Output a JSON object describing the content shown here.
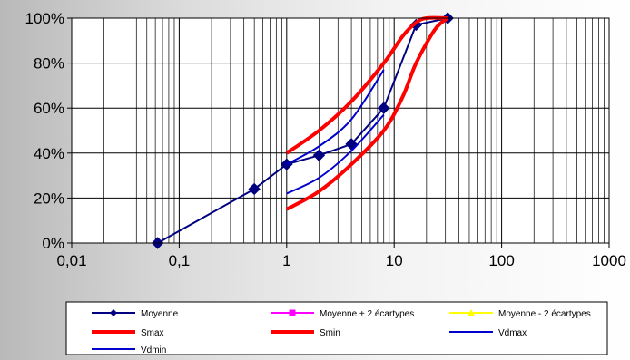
{
  "chart_data": {
    "type": "line",
    "x_scale": "log",
    "xlim": [
      0.01,
      1000
    ],
    "ylim": [
      0,
      100
    ],
    "x_ticks": [
      {
        "value": 0.01,
        "label": "0,01"
      },
      {
        "value": 0.1,
        "label": "0,1"
      },
      {
        "value": 1,
        "label": "1"
      },
      {
        "value": 10,
        "label": "10"
      },
      {
        "value": 100,
        "label": "100"
      },
      {
        "value": 1000,
        "label": "1000"
      }
    ],
    "y_ticks": [
      {
        "value": 0,
        "label": "0%"
      },
      {
        "value": 20,
        "label": "20%"
      },
      {
        "value": 40,
        "label": "40%"
      },
      {
        "value": 60,
        "label": "60%"
      },
      {
        "value": 80,
        "label": "80%"
      },
      {
        "value": 100,
        "label": "100%"
      }
    ],
    "grid": true,
    "legend_position": "bottom",
    "series": [
      {
        "name": "Moyenne",
        "color": "#000080",
        "marker": "diamond",
        "points": [
          [
            0.063,
            0
          ],
          [
            0.5,
            24
          ],
          [
            1,
            35
          ],
          [
            2,
            39
          ],
          [
            4,
            44
          ],
          [
            8,
            60
          ],
          [
            16,
            97
          ],
          [
            31.5,
            100
          ]
        ]
      },
      {
        "name": "Moyenne + 2 écartypes",
        "color": "#ff00ff",
        "marker": "square",
        "points": []
      },
      {
        "name": "Moyenne - 2 écartypes",
        "color": "#ffff00",
        "marker": "triangle",
        "points": []
      },
      {
        "name": "Vdmax",
        "color": "#0000cc",
        "marker": "none",
        "points": [
          [
            1,
            35
          ],
          [
            2,
            43
          ],
          [
            4,
            55
          ],
          [
            8,
            77
          ]
        ]
      },
      {
        "name": "Smax",
        "color": "#ff0000",
        "marker": "none",
        "points": [
          [
            1,
            40
          ],
          [
            2,
            50
          ],
          [
            4,
            63
          ],
          [
            8,
            80
          ],
          [
            12,
            92
          ],
          [
            16,
            98
          ],
          [
            20,
            100
          ],
          [
            31.5,
            100
          ]
        ]
      },
      {
        "name": "Smin",
        "color": "#ff0000",
        "marker": "none",
        "points": [
          [
            1,
            15
          ],
          [
            2,
            23
          ],
          [
            4,
            35
          ],
          [
            8,
            50
          ],
          [
            12,
            65
          ],
          [
            16,
            80
          ],
          [
            24,
            95
          ],
          [
            31.5,
            100
          ]
        ]
      },
      {
        "name": "Vdmin",
        "color": "#0000cc",
        "marker": "none",
        "points": [
          [
            1,
            22
          ],
          [
            2,
            29
          ],
          [
            4,
            41
          ],
          [
            8,
            57
          ]
        ]
      }
    ]
  },
  "legend": {
    "items": [
      {
        "label": "Moyenne",
        "color": "#000080",
        "marker": "diamond",
        "thick": false
      },
      {
        "label": "Moyenne + 2 écartypes",
        "color": "#ff00ff",
        "marker": "square",
        "thick": false
      },
      {
        "label": "Moyenne - 2 écartypes",
        "color": "#ffff00",
        "marker": "triangle",
        "thick": false
      },
      {
        "label": "Smax",
        "color": "#ff0000",
        "marker": "none",
        "thick": true
      },
      {
        "label": "Smin",
        "color": "#ff0000",
        "marker": "none",
        "thick": true
      },
      {
        "label": "Vdmax",
        "color": "#0000cc",
        "marker": "none",
        "thick": false
      },
      {
        "label": "Vdmin",
        "color": "#0000cc",
        "marker": "none",
        "thick": false
      }
    ]
  }
}
